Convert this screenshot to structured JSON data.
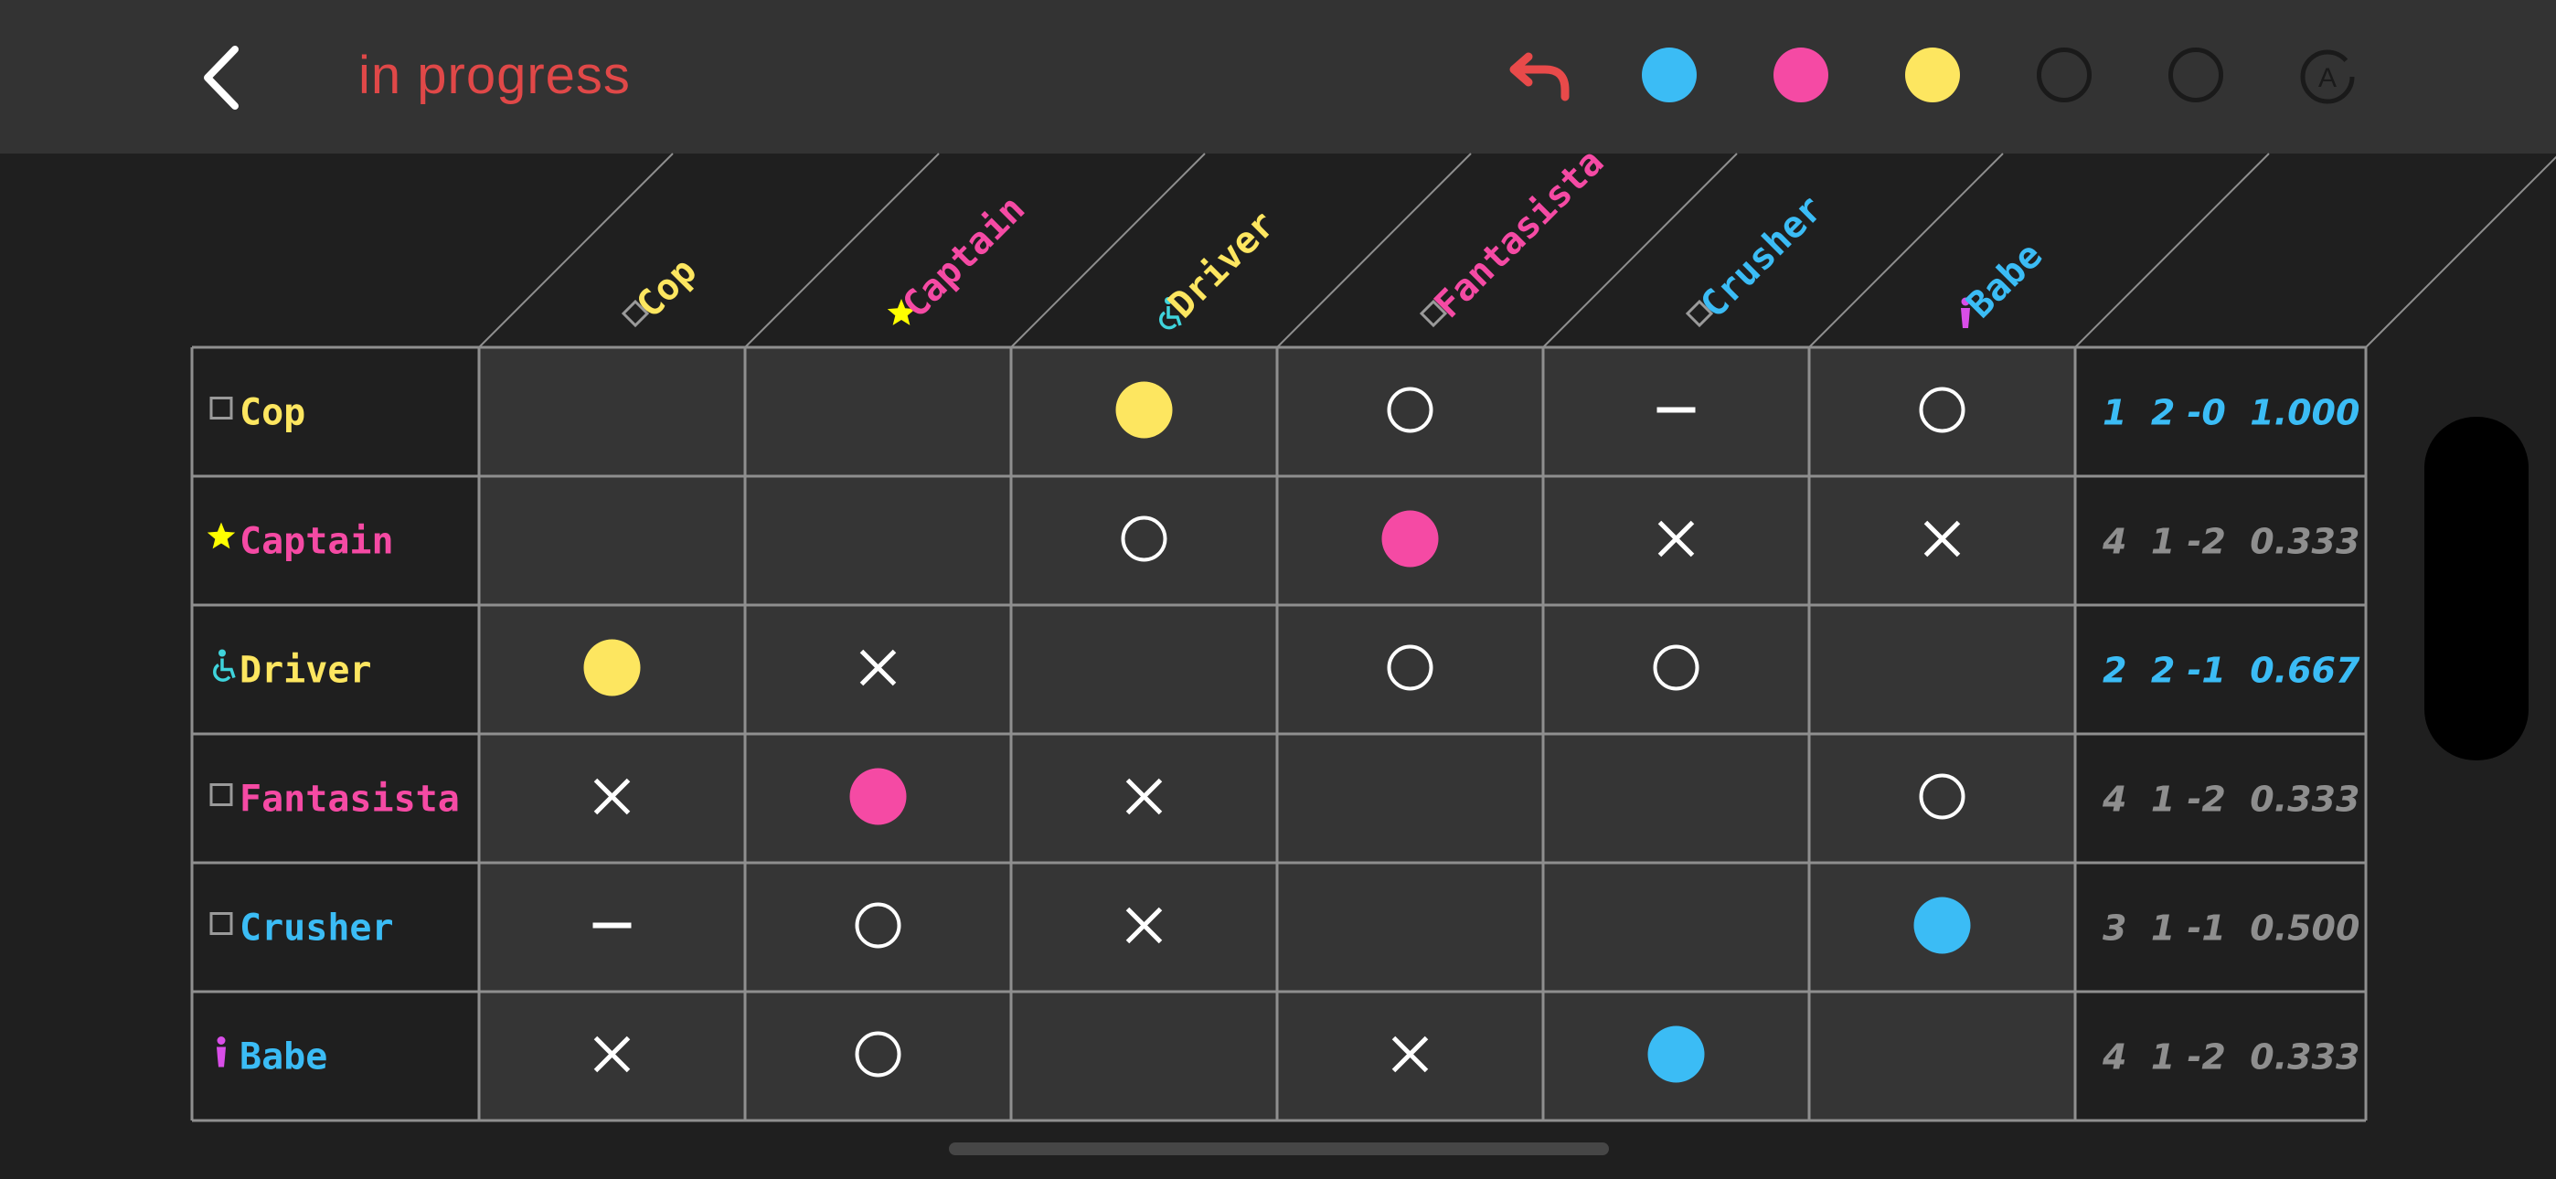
{
  "header": {
    "title": "in progress",
    "title_color": "#e04848",
    "back_icon": "chevron-left-icon",
    "undo_icon": "undo-arrow-icon",
    "auto_icon": "auto-rotate-icon",
    "auto_letter": "A",
    "palette": [
      {
        "name": "blue",
        "color": "#3bbcf5",
        "filled": true
      },
      {
        "name": "pink",
        "color": "#f54aa4",
        "filled": true
      },
      {
        "name": "yellow",
        "color": "#fde660",
        "filled": true
      },
      {
        "name": "empty-1",
        "color": "#1a1a1a",
        "filled": false
      },
      {
        "name": "empty-2",
        "color": "#1a1a1a",
        "filled": false
      }
    ]
  },
  "colors": {
    "yellow": "#fde660",
    "pink": "#f54aa4",
    "blue": "#3bbcf5",
    "cyan": "#3fd4dc",
    "magenta": "#d94ee8",
    "score_highlight": "#3bbcf5",
    "score_normal": "#8e8e8e",
    "grid": "#8f8f8f",
    "mark": "#ffffff"
  },
  "players": [
    {
      "name": "Cop",
      "color": "yellow",
      "icon": "square",
      "icon_color": "#9a9a9a",
      "col_icon": "diamond",
      "col_icon_color": "#9a9a9a"
    },
    {
      "name": "Captain",
      "color": "pink",
      "icon": "star",
      "icon_color": "#ffff00",
      "col_icon": "star",
      "col_icon_color": "#ffff00"
    },
    {
      "name": "Driver",
      "color": "yellow",
      "icon": "wheelchair",
      "icon_color": "#3fd4dc",
      "col_icon": "wheelchair",
      "col_icon_color": "#3fd4dc"
    },
    {
      "name": "Fantasista",
      "color": "pink",
      "icon": "square",
      "icon_color": "#9a9a9a",
      "col_icon": "diamond",
      "col_icon_color": "#9a9a9a"
    },
    {
      "name": "Crusher",
      "color": "blue",
      "icon": "square",
      "icon_color": "#9a9a9a",
      "col_icon": "diamond",
      "col_icon_color": "#9a9a9a"
    },
    {
      "name": "Babe",
      "color": "blue",
      "icon": "person",
      "icon_color": "#d94ee8",
      "col_icon": "person",
      "col_icon_color": "#d94ee8"
    }
  ],
  "grid": [
    [
      "",
      "",
      "dot-yellow",
      "circle",
      "dash",
      "circle"
    ],
    [
      "",
      "",
      "circle",
      "dot-pink",
      "cross",
      "cross"
    ],
    [
      "dot-yellow",
      "cross",
      "",
      "circle",
      "circle",
      ""
    ],
    [
      "cross",
      "dot-pink",
      "cross",
      "",
      "",
      "circle"
    ],
    [
      "dash",
      "circle",
      "cross",
      "",
      "",
      "dot-blue"
    ],
    [
      "cross",
      "circle",
      "",
      "cross",
      "dot-blue",
      ""
    ]
  ],
  "scores": [
    {
      "text": "1  2 -0  1.000",
      "highlight": true
    },
    {
      "text": "4  1 -2  0.333",
      "highlight": false
    },
    {
      "text": "2  2 -1  0.667",
      "highlight": true
    },
    {
      "text": "4  1 -2  0.333",
      "highlight": false
    },
    {
      "text": "3  1 -1  0.500",
      "highlight": false
    },
    {
      "text": "4  1 -2  0.333",
      "highlight": false
    }
  ]
}
